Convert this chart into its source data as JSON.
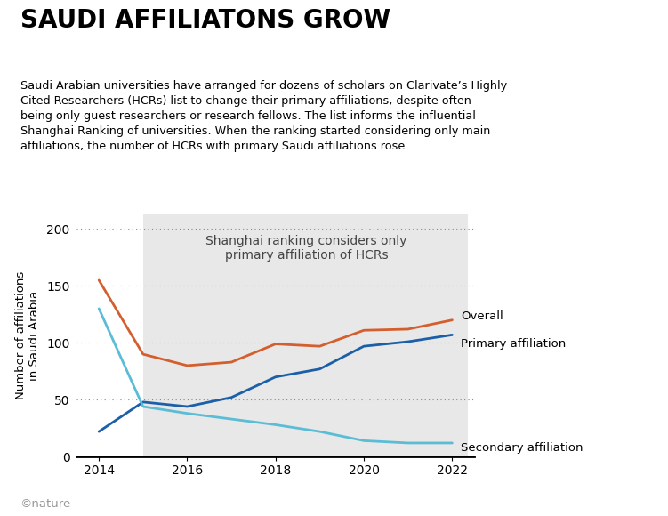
{
  "title": "SAUDI AFFILIATONS GROW",
  "subtitle": "Saudi Arabian universities have arranged for dozens of scholars on Clarivate’s Highly\nCited Researchers (HCRs) list to change their primary affiliations, despite often\nbeing only guest researchers or research fellows. The list informs the influential\nShanghai Ranking of universities. When the ranking started considering only main\naffiliations, the number of HCRs with primary Saudi affiliations rose.",
  "ylabel": "Number of affiliations\nin Saudi Arabia",
  "shaded_region_label": "Shanghai ranking considers only\nprimary affiliation of HCRs",
  "shaded_x_start": 2015,
  "shaded_x_end": 2022.35,
  "years": [
    2014,
    2015,
    2016,
    2017,
    2018,
    2019,
    2020,
    2021,
    2022
  ],
  "overall": [
    155,
    90,
    80,
    83,
    99,
    97,
    111,
    112,
    120
  ],
  "primary": [
    22,
    48,
    44,
    52,
    70,
    77,
    97,
    101,
    107
  ],
  "secondary": [
    130,
    44,
    38,
    33,
    28,
    22,
    14,
    12,
    12
  ],
  "color_overall": "#d45f2e",
  "color_primary": "#1a5fa8",
  "color_secondary": "#5bbcd6",
  "background_color": "#ffffff",
  "shaded_color": "#e8e8e8",
  "label_overall": "Overall",
  "label_primary": "Primary affiliation",
  "label_secondary": "Secondary affiliation",
  "xlim": [
    2013.5,
    2022.5
  ],
  "ylim": [
    0,
    213
  ],
  "yticks": [
    0,
    50,
    100,
    150,
    200
  ],
  "xticks": [
    2014,
    2016,
    2018,
    2020,
    2022
  ],
  "copyright": "©nature",
  "title_fontsize": 20,
  "subtitle_fontsize": 9.2,
  "label_fontsize": 9.5,
  "axis_fontsize": 10,
  "shaded_label_fontsize": 10
}
